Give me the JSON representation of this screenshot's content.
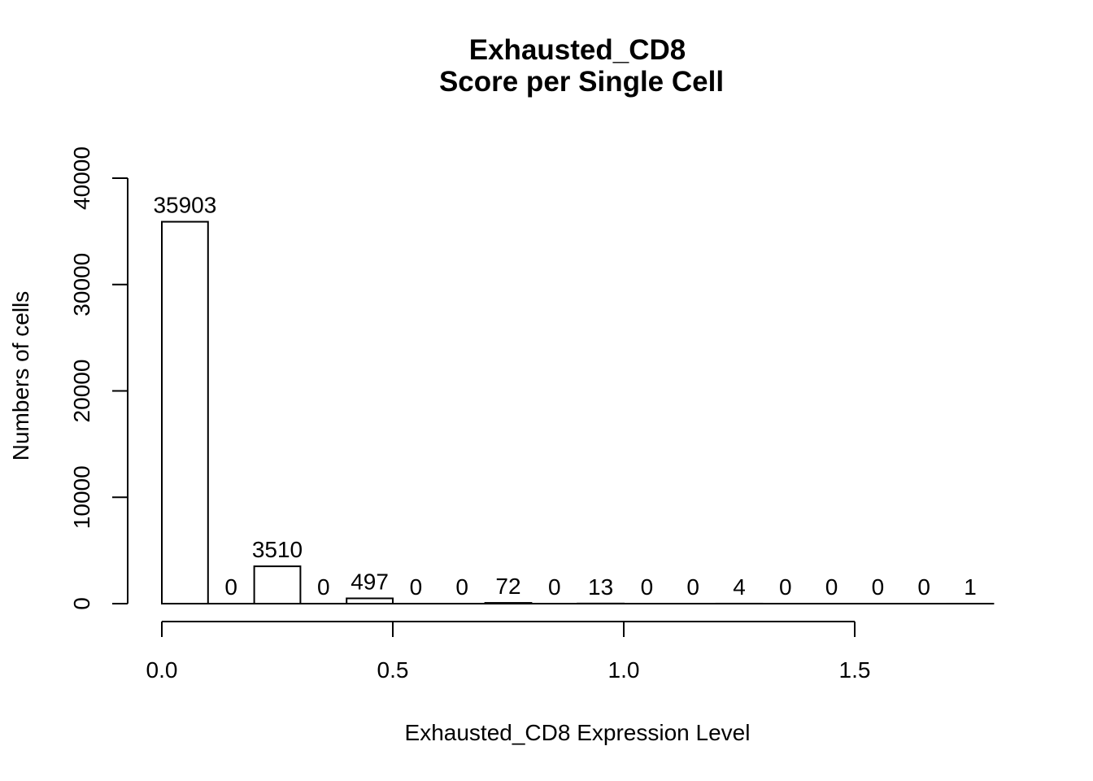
{
  "chart_data": {
    "type": "bar",
    "title": "Exhausted_CD8",
    "subtitle": "Score per Single Cell",
    "xlabel": "Exhausted_CD8 Expression Level",
    "ylabel": "Numbers of cells",
    "bin_width": 0.1,
    "bin_starts": [
      0.0,
      0.1,
      0.2,
      0.3,
      0.4,
      0.5,
      0.6,
      0.7,
      0.8,
      0.9,
      1.0,
      1.1,
      1.2,
      1.3,
      1.4,
      1.5,
      1.6,
      1.7
    ],
    "values": [
      35903,
      0,
      3510,
      0,
      497,
      0,
      0,
      72,
      0,
      13,
      0,
      0,
      4,
      0,
      0,
      0,
      0,
      1
    ],
    "xlim": [
      0.0,
      1.5
    ],
    "ylim": [
      0,
      40000
    ],
    "x_ticks": [
      0.0,
      0.5,
      1.0,
      1.5
    ],
    "x_tick_labels": [
      "0.0",
      "0.5",
      "1.0",
      "1.5"
    ],
    "y_ticks": [
      0,
      10000,
      20000,
      30000,
      40000
    ],
    "y_tick_labels": [
      "0",
      "10000",
      "20000",
      "30000",
      "40000"
    ],
    "grid": false,
    "bar_fill": "#ffffff",
    "bar_stroke": "#000000"
  }
}
